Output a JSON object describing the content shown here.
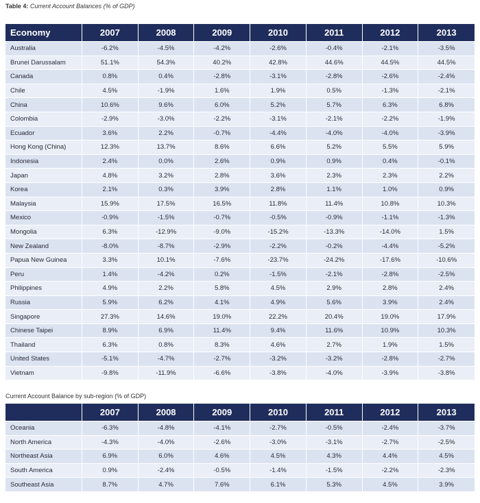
{
  "table1": {
    "caption_prefix": "Table 4:",
    "caption_text": "Current Account Balances (% of GDP)",
    "header": [
      "Economy",
      "2007",
      "2008",
      "2009",
      "2010",
      "2011",
      "2012",
      "2013"
    ],
    "rows": [
      [
        "Australia",
        "-6.2%",
        "-4.5%",
        "-4.2%",
        "-2.6%",
        "-0.4%",
        "-2.1%",
        "-3.5%"
      ],
      [
        "Brunei Darussalam",
        "51.1%",
        "54.3%",
        "40.2%",
        "42.8%",
        "44.6%",
        "44.5%",
        "44.5%"
      ],
      [
        "Canada",
        "0.8%",
        "0.4%",
        "-2.8%",
        "-3.1%",
        "-2.8%",
        "-2.6%",
        "-2.4%"
      ],
      [
        "Chile",
        "4.5%",
        "-1.9%",
        "1.6%",
        "1.9%",
        "0.5%",
        "-1.3%",
        "-2.1%"
      ],
      [
        "China",
        "10.6%",
        "9.6%",
        "6.0%",
        "5.2%",
        "5.7%",
        "6.3%",
        "6.8%"
      ],
      [
        "Colombia",
        "-2.9%",
        "-3.0%",
        "-2.2%",
        "-3.1%",
        "-2.1%",
        "-2.2%",
        "-1.9%"
      ],
      [
        "Ecuador",
        "3.6%",
        "2.2%",
        "-0.7%",
        "-4.4%",
        "-4.0%",
        "-4.0%",
        "-3.9%"
      ],
      [
        "Hong Kong (China)",
        "12.3%",
        "13.7%",
        "8.6%",
        "6.6%",
        "5.2%",
        "5.5%",
        "5.9%"
      ],
      [
        "Indonesia",
        "2.4%",
        "0.0%",
        "2.6%",
        "0.9%",
        "0.9%",
        "0.4%",
        "-0.1%"
      ],
      [
        "Japan",
        "4.8%",
        "3.2%",
        "2.8%",
        "3.6%",
        "2.3%",
        "2.3%",
        "2.2%"
      ],
      [
        "Korea",
        "2.1%",
        "0.3%",
        "3.9%",
        "2.8%",
        "1.1%",
        "1.0%",
        "0.9%"
      ],
      [
        "Malaysia",
        "15.9%",
        "17.5%",
        "16.5%",
        "11.8%",
        "11.4%",
        "10.8%",
        "10.3%"
      ],
      [
        "Mexico",
        "-0.9%",
        "-1.5%",
        "-0.7%",
        "-0.5%",
        "-0.9%",
        "-1.1%",
        "-1.3%"
      ],
      [
        "Mongolia",
        "6.3%",
        "-12.9%",
        "-9.0%",
        "-15.2%",
        "-13.3%",
        "-14.0%",
        "1.5%"
      ],
      [
        "New Zealand",
        "-8.0%",
        "-8.7%",
        "-2.9%",
        "-2.2%",
        "-0.2%",
        "-4.4%",
        "-5.2%"
      ],
      [
        "Papua New Guinea",
        "3.3%",
        "10.1%",
        "-7.6%",
        "-23.7%",
        "-24.2%",
        "-17.6%",
        "-10.6%"
      ],
      [
        "Peru",
        "1.4%",
        "-4.2%",
        "0.2%",
        "-1.5%",
        "-2.1%",
        "-2.8%",
        "-2.5%"
      ],
      [
        "Philippines",
        "4.9%",
        "2.2%",
        "5.8%",
        "4.5%",
        "2.9%",
        "2.8%",
        "2.4%"
      ],
      [
        "Russia",
        "5.9%",
        "6.2%",
        "4.1%",
        "4.9%",
        "5.6%",
        "3.9%",
        "2.4%"
      ],
      [
        "Singapore",
        "27.3%",
        "14.6%",
        "19.0%",
        "22.2%",
        "20.4%",
        "19.0%",
        "17.9%"
      ],
      [
        "Chinese Taipei",
        "8.9%",
        "6.9%",
        "11.4%",
        "9.4%",
        "11.6%",
        "10.9%",
        "10.3%"
      ],
      [
        "Thailand",
        "6.3%",
        "0.8%",
        "8.3%",
        "4.6%",
        "2.7%",
        "1.9%",
        "1.5%"
      ],
      [
        "United States",
        "-5.1%",
        "-4.7%",
        "-2.7%",
        "-3.2%",
        "-3.2%",
        "-2.8%",
        "-2.7%"
      ],
      [
        "Vietnam",
        "-9.8%",
        "-11.9%",
        "-6.6%",
        "-3.8%",
        "-4.0%",
        "-3.9%",
        "-3.8%"
      ]
    ]
  },
  "table2": {
    "caption_text": "Current Account Balance by sub-region (% of GDP)",
    "header": [
      "",
      "2007",
      "2008",
      "2009",
      "2010",
      "2011",
      "2012",
      "2013"
    ],
    "rows": [
      [
        "Oceania",
        "-6.3%",
        "-4.8%",
        "-4.1%",
        "-2.7%",
        "-0.5%",
        "-2.4%",
        "-3.7%"
      ],
      [
        "North America",
        "-4.3%",
        "-4.0%",
        "-2.6%",
        "-3.0%",
        "-3.1%",
        "-2.7%",
        "-2.5%"
      ],
      [
        "Northeast Asia",
        "6.9%",
        "6.0%",
        "4.6%",
        "4.5%",
        "4.3%",
        "4.4%",
        "4.5%"
      ],
      [
        "South America",
        "0.9%",
        "-2.4%",
        "-0.5%",
        "-1.4%",
        "-1.5%",
        "-2.2%",
        "-2.3%"
      ],
      [
        "Southeast Asia",
        "8.7%",
        "4.7%",
        "7.6%",
        "6.1%",
        "5.3%",
        "4.5%",
        "3.9%"
      ]
    ]
  },
  "colors": {
    "header_bg": "#1f2d5c",
    "row_odd": "#dbe3f1",
    "row_even": "#e9eef7"
  }
}
